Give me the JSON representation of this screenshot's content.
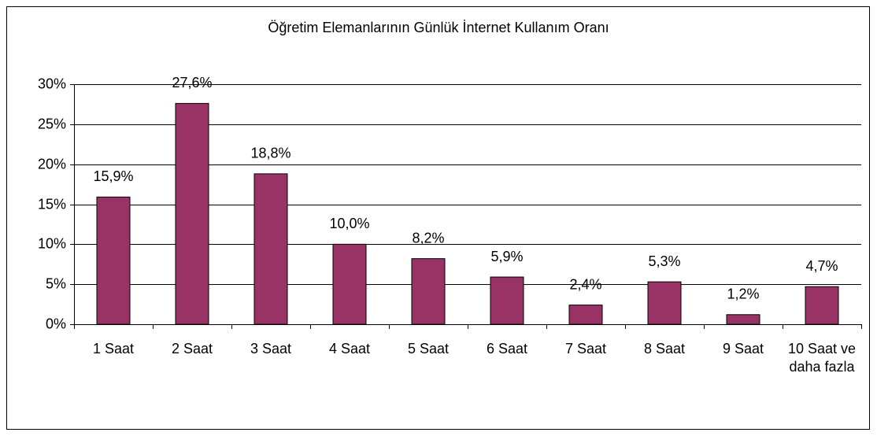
{
  "chart_data": {
    "type": "bar",
    "title": "Öğretim Elemanlarının Günlük İnternet Kullanım Oranı",
    "categories": [
      "1 Saat",
      "2 Saat",
      "3 Saat",
      "4 Saat",
      "5 Saat",
      "6 Saat",
      "7 Saat",
      "8 Saat",
      "9 Saat",
      "10 Saat ve daha fazla"
    ],
    "values": [
      15.9,
      27.6,
      18.8,
      10.0,
      8.2,
      5.9,
      2.4,
      5.3,
      1.2,
      4.7
    ],
    "value_labels": [
      "15,9%",
      "27,6%",
      "18,8%",
      "10,0%",
      "8,2%",
      "5,9%",
      "2,4%",
      "5,3%",
      "1,2%",
      "4,7%"
    ],
    "color": "#993366",
    "ylim": [
      0,
      30
    ],
    "yticks": [
      {
        "value": 0,
        "label": "0%"
      },
      {
        "value": 5,
        "label": "5%"
      },
      {
        "value": 10,
        "label": "10%"
      },
      {
        "value": 15,
        "label": "15%"
      },
      {
        "value": 20,
        "label": "20%"
      },
      {
        "value": 25,
        "label": "25%"
      },
      {
        "value": 30,
        "label": "30%"
      }
    ],
    "grid": true
  }
}
